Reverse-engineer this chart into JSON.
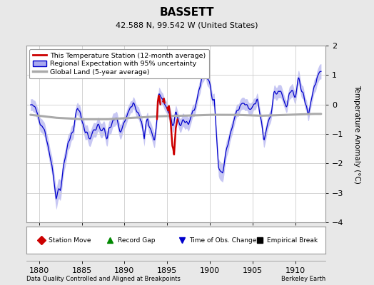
{
  "title": "BASSETT",
  "subtitle": "42.588 N, 99.542 W (United States)",
  "ylabel": "Temperature Anomaly (°C)",
  "xlabel_left": "Data Quality Controlled and Aligned at Breakpoints",
  "xlabel_right": "Berkeley Earth",
  "ylim": [
    -4,
    2
  ],
  "xlim": [
    1878.5,
    1913.5
  ],
  "xticks": [
    1880,
    1885,
    1890,
    1895,
    1900,
    1905,
    1910
  ],
  "yticks": [
    -4,
    -3,
    -2,
    -1,
    0,
    1,
    2
  ],
  "bg_color": "#e8e8e8",
  "plot_bg_color": "#ffffff",
  "blue_line_color": "#0000cc",
  "blue_fill_color": "#aaaaee",
  "red_line_color": "#cc0000",
  "gray_line_color": "#aaaaaa",
  "legend_station": "This Temperature Station (12-month average)",
  "legend_regional": "Regional Expectation with 95% uncertainty",
  "legend_global": "Global Land (5-year average)",
  "marker_station_move_color": "#cc0000",
  "marker_record_gap_color": "#008800",
  "marker_time_obs_color": "#0000cc",
  "marker_empirical_color": "#000000",
  "seed": 42
}
